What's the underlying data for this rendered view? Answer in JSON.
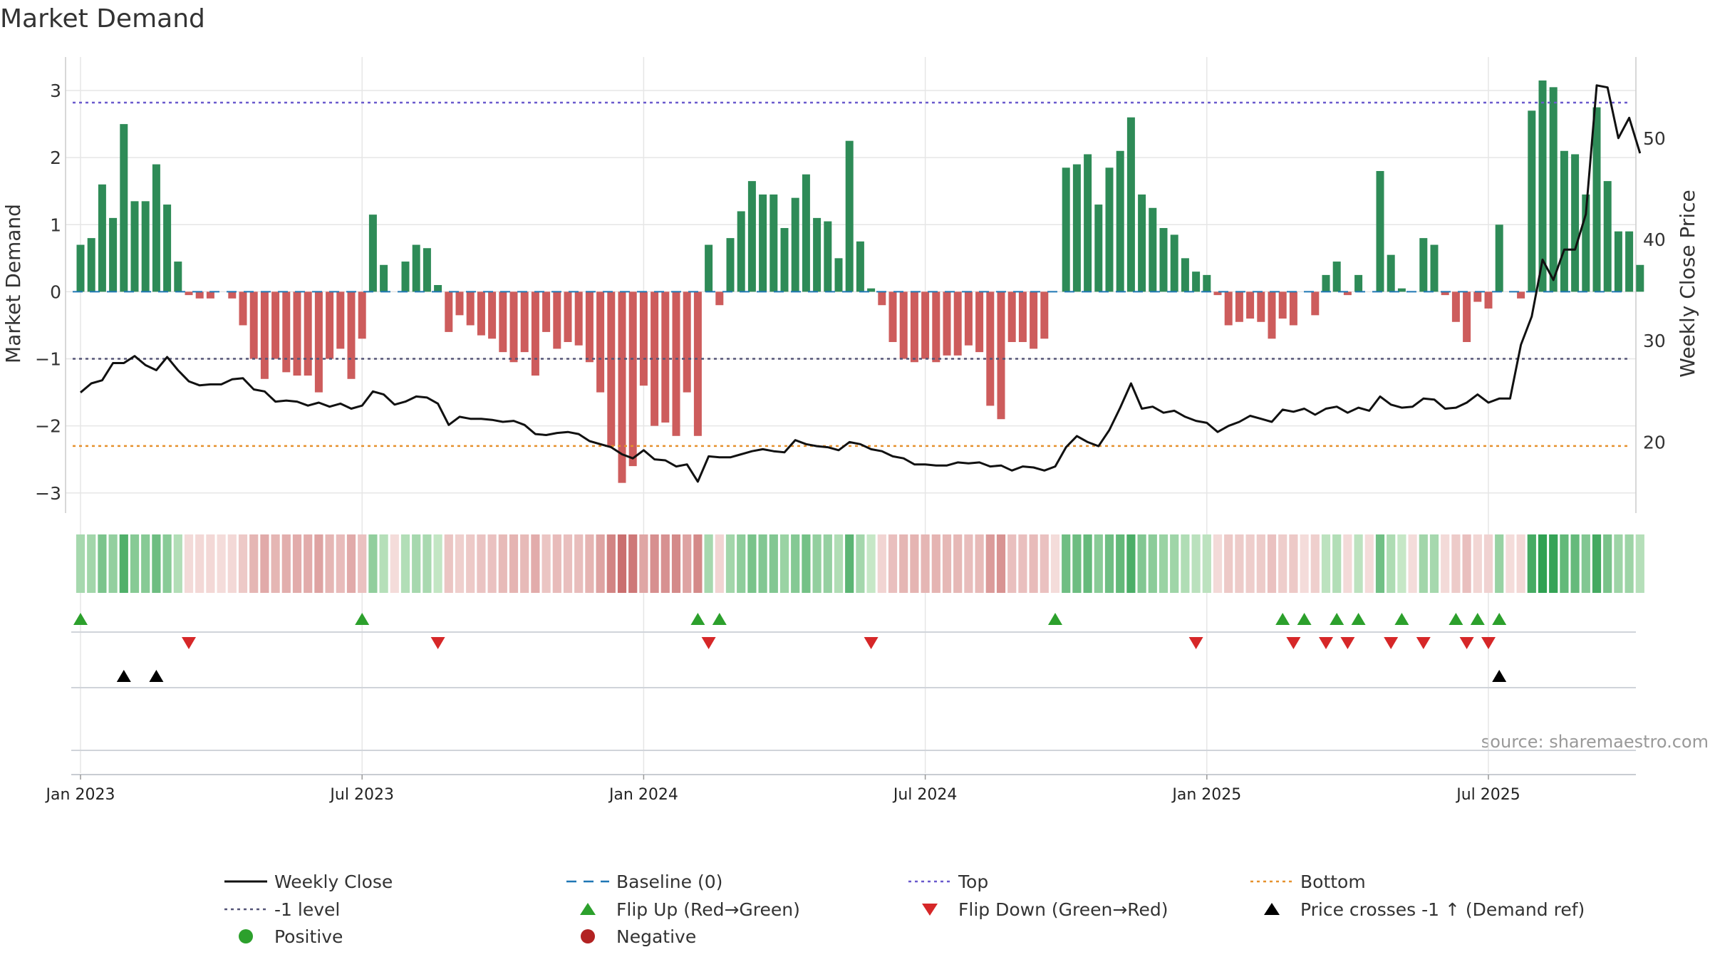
{
  "chart_data": {
    "type": "bar",
    "title": "Market Demand",
    "ylabel": "Market Demand",
    "y2label": "Weekly Close Price",
    "source": "source: sharemaestro.com",
    "ylim": [
      -3.3,
      3.5
    ],
    "y_ticks": [
      "3",
      "2",
      "1",
      "0",
      "−1",
      "−2",
      "−3"
    ],
    "y_tick_values": [
      3,
      2,
      1,
      0,
      -1,
      -2,
      -3
    ],
    "y2lim": [
      13,
      58
    ],
    "y2_ticks": [
      "50",
      "40",
      "30",
      "20"
    ],
    "y2_tick_values": [
      50,
      40,
      30,
      20
    ],
    "x_ticks": [
      "Jan 2023",
      "Jul 2023",
      "Jan 2024",
      "Jul 2024",
      "Jan 2025",
      "Jul 2025"
    ],
    "x_tick_weeks": [
      0,
      26,
      52,
      78,
      104,
      130
    ],
    "weeks_start": "2023-01-02",
    "reference_lines": {
      "top": 2.82,
      "minus_one": -1.0,
      "bottom": -2.3,
      "baseline": 0
    },
    "demand": [
      0.7,
      0.8,
      1.6,
      1.1,
      2.5,
      1.35,
      1.35,
      1.9,
      1.3,
      0.45,
      -0.05,
      -0.1,
      -0.1,
      0,
      -0.1,
      -0.5,
      -1.0,
      -1.3,
      -1.0,
      -1.2,
      -1.25,
      -1.25,
      -1.5,
      -1.0,
      -0.85,
      -1.3,
      -0.7,
      1.15,
      0.4,
      0,
      0.45,
      0.7,
      0.65,
      0.1,
      -0.6,
      -0.35,
      -0.5,
      -0.65,
      -0.7,
      -0.9,
      -1.05,
      -0.9,
      -1.25,
      -0.6,
      -0.85,
      -0.75,
      -0.8,
      -1.05,
      -1.5,
      -2.3,
      -2.85,
      -2.6,
      -1.4,
      -2.0,
      -1.95,
      -2.15,
      -1.5,
      -2.15,
      0.7,
      -0.2,
      0.8,
      1.2,
      1.65,
      1.45,
      1.45,
      0.95,
      1.4,
      1.75,
      1.1,
      1.05,
      0.5,
      2.25,
      0.75,
      0.05,
      -0.2,
      -0.75,
      -1.0,
      -1.05,
      -1.0,
      -1.05,
      -0.95,
      -0.95,
      -0.8,
      -0.9,
      -1.7,
      -1.9,
      -0.75,
      -0.75,
      -0.85,
      -0.7,
      0,
      1.85,
      1.9,
      2.05,
      1.3,
      1.85,
      2.1,
      2.6,
      1.45,
      1.25,
      0.95,
      0.85,
      0.5,
      0.3,
      0.25,
      -0.05,
      -0.5,
      -0.45,
      -0.4,
      -0.45,
      -0.7,
      -0.4,
      -0.5,
      0,
      -0.35,
      0.25,
      0.45,
      -0.05,
      0.25,
      0,
      1.8,
      0.55,
      0.05,
      0,
      0.8,
      0.7,
      -0.05,
      -0.45,
      -0.75,
      -0.15,
      -0.25,
      1.0,
      0,
      -0.1,
      2.7,
      3.15,
      3.05,
      2.1,
      2.05,
      1.45,
      2.75,
      1.65,
      0.9,
      0.9,
      0.4
    ],
    "close": [
      24.9,
      25.8,
      26.1,
      27.8,
      27.8,
      28.5,
      27.6,
      27.1,
      28.4,
      27.1,
      26.0,
      25.6,
      25.7,
      25.7,
      26.2,
      26.3,
      25.2,
      25.0,
      24.0,
      24.1,
      24.0,
      23.6,
      23.9,
      23.5,
      23.8,
      23.3,
      23.6,
      25.0,
      24.7,
      23.7,
      24.0,
      24.5,
      24.4,
      23.8,
      21.7,
      22.5,
      22.3,
      22.3,
      22.2,
      22.0,
      22.1,
      21.7,
      20.8,
      20.7,
      20.9,
      21.0,
      20.8,
      20.1,
      19.8,
      19.5,
      18.8,
      18.4,
      19.2,
      18.3,
      18.2,
      17.6,
      17.8,
      16.1,
      18.6,
      18.5,
      18.5,
      18.8,
      19.1,
      19.3,
      19.1,
      19.0,
      20.2,
      19.8,
      19.6,
      19.5,
      19.2,
      20.0,
      19.8,
      19.3,
      19.1,
      18.6,
      18.4,
      17.8,
      17.8,
      17.7,
      17.7,
      18.0,
      17.9,
      18.0,
      17.6,
      17.7,
      17.2,
      17.6,
      17.5,
      17.2,
      17.6,
      19.5,
      20.6,
      20.0,
      19.6,
      21.2,
      23.4,
      25.8,
      23.3,
      23.5,
      22.9,
      23.1,
      22.5,
      22.1,
      21.9,
      21.0,
      21.6,
      22.0,
      22.6,
      22.3,
      22.0,
      23.2,
      23.0,
      23.3,
      22.7,
      23.3,
      23.5,
      22.9,
      23.4,
      23.1,
      24.5,
      23.7,
      23.4,
      23.5,
      24.3,
      24.2,
      23.3,
      23.4,
      23.9,
      24.7,
      23.9,
      24.3,
      24.3,
      29.6,
      32.4,
      38.0,
      36.0,
      39.0,
      39.0,
      42.5,
      55.2,
      55.0,
      50.0,
      52.0,
      48.5
    ],
    "flip_up_weeks": [
      0,
      26,
      57,
      59,
      90,
      111,
      113,
      116,
      118,
      122,
      127,
      129,
      131
    ],
    "flip_down_weeks": [
      10,
      33,
      58,
      73,
      103,
      112,
      115,
      117,
      121,
      124,
      128,
      130
    ],
    "price_cross_weeks": [
      4,
      7,
      131
    ],
    "legend": [
      {
        "label": "Weekly Close",
        "kind": "line",
        "color": "#111111"
      },
      {
        "label": "Baseline (0)",
        "kind": "dash",
        "color": "#1f77b4"
      },
      {
        "label": "Top",
        "kind": "dot",
        "color": "#6a5acd"
      },
      {
        "label": "Bottom",
        "kind": "dot",
        "color": "#e6912e"
      },
      {
        "label": "-1 level",
        "kind": "dot",
        "color": "#555577"
      },
      {
        "label": "Flip Up (Red→Green)",
        "kind": "tri-up",
        "color": "#2ca02c"
      },
      {
        "label": "Flip Down (Green→Red)",
        "kind": "tri-down",
        "color": "#d62728"
      },
      {
        "label": "Price crosses -1 ↑ (Demand ref)",
        "kind": "tri-up",
        "color": "#000000"
      },
      {
        "label": "Positive",
        "kind": "circle",
        "color": "#2ca02c"
      },
      {
        "label": "Negative",
        "kind": "circle",
        "color": "#b22222"
      }
    ],
    "colors": {
      "positive_bar": "#2e8b57",
      "negative_bar": "#cd5c5c",
      "line": "#111111",
      "grid": "#e6e6e6"
    }
  }
}
